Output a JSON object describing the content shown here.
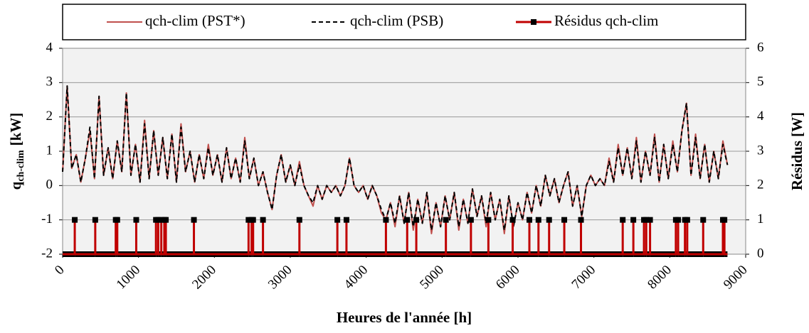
{
  "chart_data": {
    "type": "line",
    "x_label": "Heures de l'année [h]",
    "y_label": {
      "main": "q",
      "sub": "ch-clim",
      "unit": "[kW]"
    },
    "y2_label": "Résidus [W]",
    "xlim": [
      0,
      9000
    ],
    "xticks": [
      0,
      1000,
      2000,
      3000,
      4000,
      5000,
      6000,
      7000,
      8000,
      9000
    ],
    "ylim": [
      -2,
      4
    ],
    "yticks": [
      -2,
      -1,
      0,
      1,
      2,
      3,
      4
    ],
    "y2lim": [
      0,
      6
    ],
    "y2ticks": [
      0,
      1,
      2,
      3,
      4,
      5,
      6
    ],
    "grid": true,
    "legend": "top",
    "x": [
      0,
      60,
      120,
      180,
      240,
      300,
      360,
      420,
      480,
      540,
      600,
      660,
      720,
      780,
      840,
      900,
      960,
      1020,
      1080,
      1140,
      1200,
      1260,
      1320,
      1380,
      1440,
      1500,
      1560,
      1620,
      1680,
      1740,
      1800,
      1860,
      1920,
      1980,
      2040,
      2100,
      2160,
      2220,
      2280,
      2340,
      2400,
      2460,
      2520,
      2580,
      2640,
      2700,
      2760,
      2820,
      2880,
      2940,
      3000,
      3060,
      3120,
      3180,
      3240,
      3300,
      3360,
      3420,
      3480,
      3540,
      3600,
      3660,
      3720,
      3780,
      3840,
      3900,
      3960,
      4020,
      4080,
      4140,
      4200,
      4260,
      4320,
      4380,
      4440,
      4500,
      4560,
      4620,
      4680,
      4740,
      4800,
      4860,
      4920,
      4980,
      5040,
      5100,
      5160,
      5220,
      5280,
      5340,
      5400,
      5460,
      5520,
      5580,
      5640,
      5700,
      5760,
      5820,
      5880,
      5940,
      6000,
      6060,
      6120,
      6180,
      6240,
      6300,
      6360,
      6420,
      6480,
      6540,
      6600,
      6660,
      6720,
      6780,
      6840,
      6900,
      6960,
      7020,
      7080,
      7140,
      7200,
      7260,
      7320,
      7380,
      7440,
      7500,
      7560,
      7620,
      7680,
      7740,
      7800,
      7860,
      7920,
      7980,
      8040,
      8100,
      8160,
      8220,
      8280,
      8340,
      8400,
      8460,
      8520,
      8580,
      8640,
      8700,
      8760
    ],
    "series": [
      {
        "name": "qch-clim (PST*)",
        "color": "#c0504d",
        "dash": false,
        "values": [
          0.4,
          2.9,
          0.5,
          0.9,
          0.1,
          0.8,
          1.6,
          0.2,
          2.6,
          0.3,
          1.1,
          0.2,
          1.3,
          0.4,
          2.7,
          0.3,
          1.2,
          0.1,
          1.9,
          0.2,
          1.6,
          0.3,
          1.4,
          0.2,
          1.5,
          0.1,
          1.8,
          0.4,
          1.0,
          0.1,
          0.9,
          0.2,
          1.2,
          0.3,
          0.9,
          0.1,
          1.1,
          0.2,
          0.8,
          0.1,
          1.4,
          0.2,
          0.8,
          0.0,
          0.4,
          -0.2,
          -0.7,
          0.3,
          0.9,
          0.1,
          0.6,
          0.0,
          0.7,
          0.0,
          -0.3,
          -0.6,
          0.0,
          -0.4,
          0.0,
          -0.2,
          0.0,
          -0.3,
          0.0,
          0.8,
          0.0,
          -0.2,
          0.0,
          -0.4,
          0.0,
          -0.3,
          -0.8,
          -1.0,
          -0.5,
          -1.2,
          -0.3,
          -1.1,
          -0.2,
          -1.3,
          -0.4,
          -1.1,
          -0.2,
          -1.4,
          -0.5,
          -1.2,
          -0.3,
          -1.0,
          -0.2,
          -1.3,
          -0.4,
          -1.1,
          -0.1,
          -0.9,
          -0.3,
          -1.2,
          -0.2,
          -1.0,
          -0.4,
          -1.4,
          -0.3,
          -1.2,
          -0.5,
          -1.0,
          -0.2,
          -0.8,
          0.0,
          -0.6,
          0.3,
          -0.3,
          0.2,
          -0.5,
          0.0,
          0.4,
          -0.6,
          0.0,
          -0.9,
          0.0,
          0.3,
          0.0,
          0.2,
          0.0,
          0.8,
          0.1,
          1.2,
          0.3,
          1.1,
          0.2,
          1.4,
          0.1,
          1.0,
          0.3,
          1.5,
          0.1,
          1.2,
          0.2,
          1.3,
          0.4,
          1.6,
          2.4,
          0.3,
          1.5,
          0.2,
          1.2,
          0.1,
          1.0,
          0.2,
          1.3,
          0.6
        ]
      },
      {
        "name": "qch-clim (PSB)",
        "color": "#000000",
        "dash": true,
        "values": [
          0.4,
          2.9,
          0.5,
          0.9,
          0.1,
          0.8,
          1.7,
          0.2,
          2.6,
          0.3,
          1.1,
          0.2,
          1.3,
          0.4,
          2.7,
          0.3,
          1.2,
          0.1,
          1.8,
          0.2,
          1.6,
          0.3,
          1.4,
          0.2,
          1.5,
          0.1,
          1.7,
          0.4,
          1.0,
          0.1,
          0.9,
          0.2,
          1.1,
          0.3,
          0.9,
          0.1,
          1.1,
          0.2,
          0.8,
          0.1,
          1.3,
          0.2,
          0.8,
          0.0,
          0.4,
          -0.2,
          -0.7,
          0.3,
          0.9,
          0.1,
          0.6,
          0.0,
          0.6,
          0.0,
          -0.3,
          -0.5,
          0.0,
          -0.4,
          0.0,
          -0.2,
          0.0,
          -0.3,
          0.0,
          0.8,
          0.0,
          -0.2,
          0.0,
          -0.4,
          0.0,
          -0.3,
          -0.7,
          -1.0,
          -0.5,
          -1.1,
          -0.3,
          -1.1,
          -0.2,
          -1.2,
          -0.4,
          -1.1,
          -0.2,
          -1.3,
          -0.5,
          -1.2,
          -0.3,
          -1.0,
          -0.2,
          -1.2,
          -0.4,
          -1.1,
          -0.1,
          -0.9,
          -0.3,
          -1.1,
          -0.2,
          -1.0,
          -0.4,
          -1.3,
          -0.3,
          -1.2,
          -0.5,
          -1.0,
          -0.2,
          -0.8,
          0.0,
          -0.6,
          0.3,
          -0.3,
          0.2,
          -0.5,
          0.0,
          0.4,
          -0.6,
          0.0,
          -0.9,
          0.0,
          0.3,
          0.0,
          0.2,
          0.0,
          0.7,
          0.1,
          1.1,
          0.3,
          1.1,
          0.2,
          1.3,
          0.1,
          1.0,
          0.3,
          1.4,
          0.1,
          1.2,
          0.2,
          1.2,
          0.4,
          1.6,
          2.4,
          0.3,
          1.4,
          0.2,
          1.2,
          0.1,
          1.0,
          0.2,
          1.2,
          0.6
        ]
      },
      {
        "name": "Résidus qch-clim",
        "color": "#c00000",
        "axis": "y2",
        "marker": "square",
        "x": [
          0,
          160,
          160,
          160,
          430,
          430,
          430,
          700,
          700,
          700,
          720,
          720,
          720,
          970,
          970,
          970,
          1230,
          1230,
          1230,
          1260,
          1260,
          1260,
          1300,
          1300,
          1300,
          1340,
          1340,
          1340,
          1360,
          1360,
          1360,
          1730,
          1730,
          1730,
          2450,
          2450,
          2450,
          2490,
          2490,
          2490,
          2510,
          2510,
          2510,
          2640,
          2640,
          2640,
          3120,
          3120,
          3120,
          3620,
          3620,
          3620,
          3740,
          3740,
          3740,
          4260,
          4260,
          4260,
          4540,
          4540,
          4540,
          4660,
          4660,
          4660,
          5050,
          5050,
          5050,
          5380,
          5380,
          5380,
          5610,
          5610,
          5610,
          5930,
          5930,
          5930,
          6150,
          6150,
          6150,
          6270,
          6270,
          6270,
          6410,
          6410,
          6410,
          6610,
          6610,
          6610,
          6830,
          6830,
          6830,
          7380,
          7380,
          7380,
          7520,
          7520,
          7520,
          7660,
          7660,
          7660,
          7690,
          7690,
          7690,
          7740,
          7740,
          7740,
          8080,
          8080,
          8080,
          8110,
          8110,
          8110,
          8200,
          8200,
          8200,
          8230,
          8230,
          8230,
          8440,
          8440,
          8440,
          8700,
          8700,
          8700,
          8720,
          8720,
          8720,
          8760
        ],
        "values": [
          0,
          0,
          1,
          0,
          0,
          1,
          0,
          0,
          1,
          0,
          0,
          1,
          0,
          0,
          1,
          0,
          0,
          1,
          0,
          0,
          1,
          0,
          0,
          1,
          0,
          0,
          1,
          0,
          0,
          1,
          0,
          0,
          1,
          0,
          0,
          1,
          0,
          0,
          1,
          0,
          0,
          1,
          0,
          0,
          1,
          0,
          0,
          1,
          0,
          0,
          1,
          0,
          0,
          1,
          0,
          0,
          1,
          0,
          0,
          1,
          0,
          0,
          1,
          0,
          0,
          1,
          0,
          0,
          1,
          0,
          0,
          1,
          0,
          0,
          1,
          0,
          0,
          1,
          0,
          0,
          1,
          0,
          0,
          1,
          0,
          0,
          1,
          0,
          0,
          1,
          0,
          0,
          1,
          0,
          0,
          1,
          0,
          0,
          1,
          0,
          0,
          1,
          0,
          0,
          1,
          0,
          0,
          1,
          0,
          0,
          1,
          0,
          0,
          1,
          0,
          0,
          1,
          0,
          0,
          1,
          0,
          0,
          1,
          0,
          0,
          1,
          0,
          0
        ]
      }
    ]
  }
}
